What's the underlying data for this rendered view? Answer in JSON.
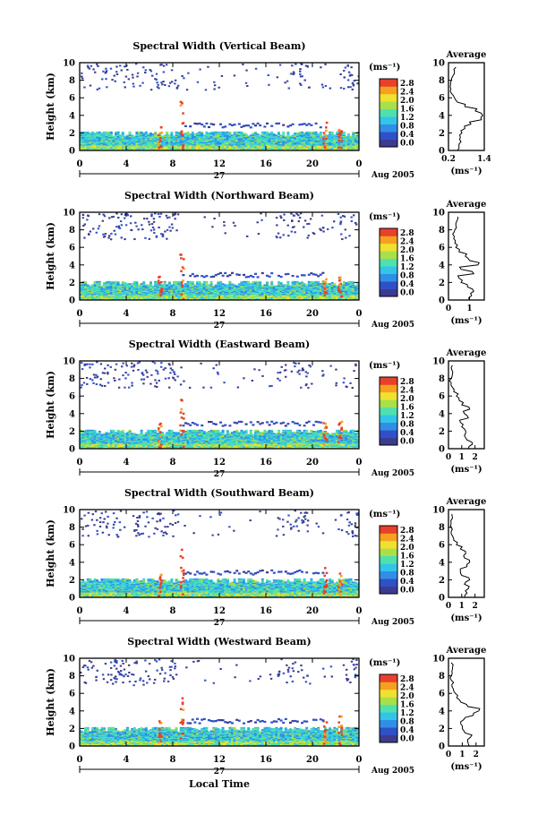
{
  "figure": {
    "x_axis_label": "Local Time",
    "date_label": "Aug 2005",
    "day_label": "27",
    "colorbar_unit": "(ms⁻¹)",
    "colorbar_ticks": [
      "0.0",
      "0.4",
      "0.8",
      "1.2",
      "1.6",
      "2.0",
      "2.4",
      "2.8"
    ],
    "colorbar_colors": [
      "#3b3b8f",
      "#3050c8",
      "#2f8fe6",
      "#33c5e8",
      "#4fe0b0",
      "#a8e04a",
      "#f0e030",
      "#f5a020",
      "#e8402a"
    ],
    "time_ticks": [
      "0",
      "4",
      "8",
      "12",
      "16",
      "20",
      "0"
    ],
    "height_label": "Height (km)",
    "height_ticks": [
      "0",
      "2",
      "4",
      "6",
      "8",
      "10"
    ],
    "avg_title": "Average",
    "avg_unit": "(ms⁻¹)"
  },
  "chart_data": [
    {
      "type": "heatmap",
      "title": "Spectral Width (Vertical Beam)",
      "xlabel": "Local Time",
      "ylabel": "Height (km)",
      "xlim": [
        0,
        24
      ],
      "ylim": [
        0,
        10
      ],
      "clim": [
        0.0,
        2.8
      ],
      "average_profile": {
        "xticks": [
          "0.2",
          "1.4"
        ],
        "xlim": [
          0.2,
          1.4
        ],
        "height_km": [
          0,
          0.5,
          1,
          1.5,
          2,
          2.5,
          3,
          3.5,
          4,
          4.5,
          5,
          5.5,
          6,
          6.5,
          7,
          7.5,
          8,
          8.5,
          9,
          9.5
        ],
        "value": [
          0.5,
          0.55,
          0.62,
          0.6,
          0.65,
          0.75,
          0.95,
          1.3,
          1.35,
          1.1,
          0.75,
          0.5,
          0.4,
          0.3,
          0.28,
          0.27,
          0.3,
          0.35,
          0.4,
          0.45
        ]
      }
    },
    {
      "type": "heatmap",
      "title": "Spectral Width (Northward Beam)",
      "xlabel": "Local Time",
      "ylabel": "Height (km)",
      "xlim": [
        0,
        24
      ],
      "ylim": [
        0,
        10
      ],
      "clim": [
        0.0,
        2.8
      ],
      "average_profile": {
        "xticks": [
          "0",
          "1"
        ],
        "xlim": [
          0,
          1.7
        ],
        "height_km": [
          0,
          0.5,
          1,
          1.5,
          2,
          2.5,
          3,
          3.5,
          4,
          4.5,
          5,
          5.5,
          6,
          6.5,
          7,
          7.5,
          8,
          8.5,
          9,
          9.5
        ],
        "value": [
          1.0,
          1.1,
          1.2,
          0.9,
          0.6,
          0.5,
          1.2,
          0.6,
          1.4,
          1.0,
          0.8,
          0.5,
          0.35,
          0.3,
          0.25,
          0.2,
          0.3,
          0.35,
          0.4,
          0.45
        ]
      }
    },
    {
      "type": "heatmap",
      "title": "Spectral Width (Eastward Beam)",
      "xlabel": "Local Time",
      "ylabel": "Height (km)",
      "xlim": [
        0,
        24
      ],
      "ylim": [
        0,
        10
      ],
      "clim": [
        0.0,
        2.8
      ],
      "average_profile": {
        "xticks": [
          "0",
          "1",
          "2"
        ],
        "xlim": [
          0,
          2.7
        ],
        "height_km": [
          0,
          0.5,
          1,
          1.5,
          2,
          2.5,
          3,
          3.5,
          4,
          4.5,
          5,
          5.5,
          6,
          6.5,
          7,
          7.5,
          8,
          8.5,
          9,
          9.5
        ],
        "value": [
          1.5,
          1.8,
          1.4,
          1.2,
          1.3,
          1.0,
          0.9,
          1.5,
          1.2,
          1.6,
          1.0,
          0.8,
          0.6,
          0.4,
          0.3,
          0.2,
          0.2,
          0.3,
          0.25,
          0.3
        ]
      }
    },
    {
      "type": "heatmap",
      "title": "Spectral Width (Southward Beam)",
      "xlabel": "Local Time",
      "ylabel": "Height (km)",
      "xlim": [
        0,
        24
      ],
      "ylim": [
        0,
        10
      ],
      "clim": [
        0.0,
        2.8
      ],
      "average_profile": {
        "xticks": [
          "0",
          "1",
          "2"
        ],
        "xlim": [
          0,
          2.7
        ],
        "height_km": [
          0,
          0.5,
          1,
          1.5,
          2,
          2.5,
          3,
          3.5,
          4,
          4.5,
          5,
          5.5,
          6,
          6.5,
          7,
          7.5,
          8,
          8.5,
          9,
          9.5
        ],
        "value": [
          1.2,
          1.4,
          1.5,
          1.2,
          1.6,
          1.0,
          0.9,
          1.4,
          1.6,
          1.2,
          1.3,
          0.9,
          0.6,
          0.4,
          0.3,
          0.2,
          0.15,
          0.2,
          0.3,
          0.25
        ]
      }
    },
    {
      "type": "heatmap",
      "title": "Spectral Width (Westward Beam)",
      "xlabel": "Local Time",
      "ylabel": "Height (km)",
      "xlim": [
        0,
        24
      ],
      "ylim": [
        0,
        10
      ],
      "clim": [
        0.0,
        2.8
      ],
      "average_profile": {
        "xticks": [
          "0",
          "1",
          "2"
        ],
        "xlim": [
          0,
          2.6
        ],
        "height_km": [
          0,
          0.5,
          1,
          1.5,
          2,
          2.5,
          3,
          3.5,
          4,
          4.5,
          5,
          5.5,
          6,
          6.5,
          7,
          7.5,
          8,
          8.5,
          9,
          9.5
        ],
        "value": [
          1.5,
          1.4,
          1.6,
          1.2,
          1.0,
          0.9,
          1.1,
          1.8,
          2.2,
          1.4,
          0.9,
          0.6,
          0.5,
          0.35,
          0.25,
          0.2,
          0.2,
          0.25,
          0.3,
          0.2
        ]
      }
    }
  ]
}
